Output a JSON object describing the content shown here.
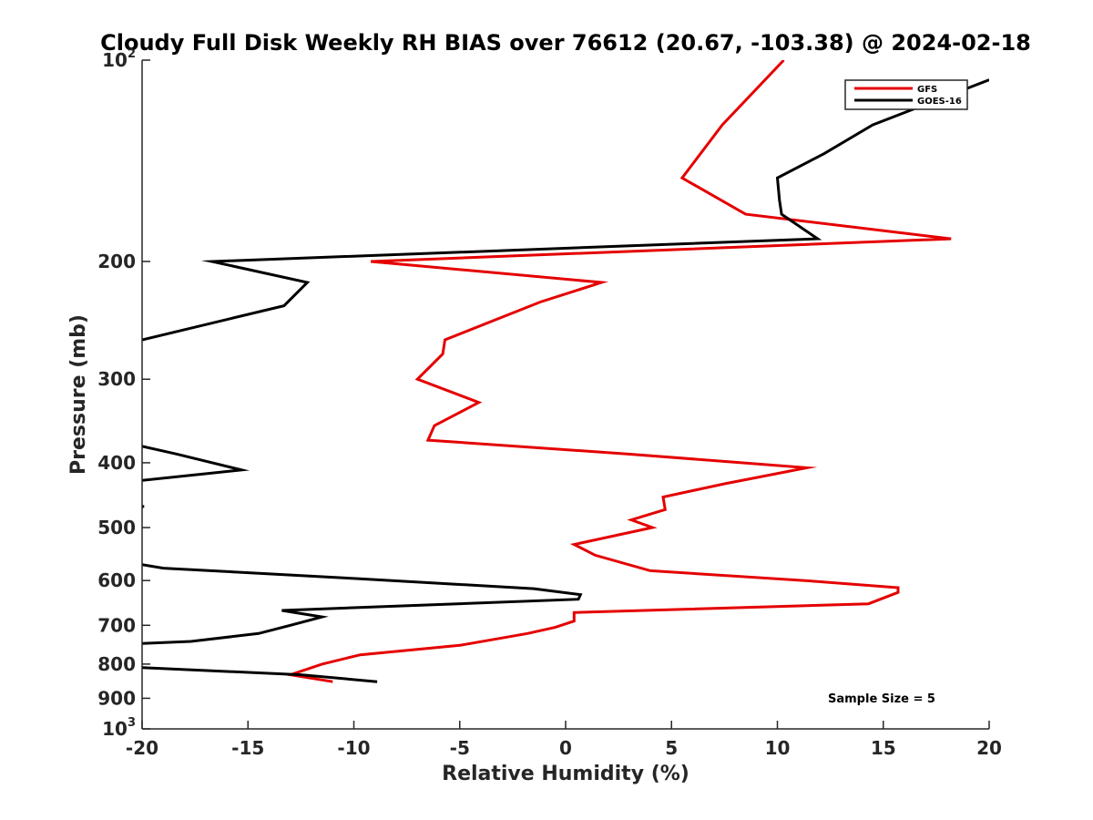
{
  "chart_data": {
    "type": "line",
    "title": "Cloudy Full Disk Weekly RH BIAS over 76612 (20.67, -103.38) @ 2024-02-18",
    "xlabel": "Relative Humidity (%)",
    "ylabel": "Pressure (mb)",
    "xlim": [
      -20,
      20
    ],
    "ylim": [
      100,
      1000
    ],
    "yscale": "log",
    "y_reversed": true,
    "x_ticks": [
      -20,
      -15,
      -10,
      -5,
      0,
      5,
      10,
      15,
      20
    ],
    "x_tick_labels": [
      "-20",
      "-15",
      "-10",
      "-5",
      "0",
      "5",
      "10",
      "15",
      "20"
    ],
    "y_ticks": [
      {
        "value": 100,
        "base": "10",
        "exp": "2"
      },
      {
        "value": 200,
        "base": "200",
        "exp": ""
      },
      {
        "value": 300,
        "base": "300",
        "exp": ""
      },
      {
        "value": 400,
        "base": "400",
        "exp": ""
      },
      {
        "value": 500,
        "base": "500",
        "exp": ""
      },
      {
        "value": 600,
        "base": "600",
        "exp": ""
      },
      {
        "value": 700,
        "base": "700",
        "exp": ""
      },
      {
        "value": 800,
        "base": "800",
        "exp": ""
      },
      {
        "value": 900,
        "base": "900",
        "exp": ""
      },
      {
        "value": 1000,
        "base": "10",
        "exp": "3"
      }
    ],
    "legend_position": "top-right",
    "annotation": "Sample Size = 5",
    "series": [
      {
        "name": "GFS",
        "color": "#e50000",
        "segments": [
          [
            [
              10.3,
              100
            ],
            [
              7.4,
              125
            ],
            [
              5.5,
              150
            ],
            [
              8.5,
              170
            ],
            [
              18.2,
              185
            ],
            [
              -9.2,
              200
            ],
            [
              1.7,
              215
            ],
            [
              -1.2,
              230
            ],
            [
              -5.7,
              262
            ],
            [
              -5.8,
              275
            ],
            [
              -7.0,
              300
            ],
            [
              -4.1,
              325
            ],
            [
              -6.2,
              352
            ],
            [
              -6.5,
              370
            ],
            [
              2.9,
              388
            ],
            [
              11.4,
              407
            ],
            [
              7.5,
              430
            ],
            [
              4.6,
              450
            ],
            [
              4.7,
              470
            ],
            [
              3.1,
              487
            ],
            [
              4.1,
              500
            ],
            [
              0.4,
              530
            ],
            [
              1.4,
              550
            ],
            [
              4.0,
              580
            ],
            [
              11.3,
              600
            ],
            [
              15.7,
              615
            ],
            [
              15.7,
              625
            ],
            [
              14.3,
              650
            ],
            [
              0.4,
              670
            ],
            [
              0.4,
              690
            ],
            [
              -0.5,
              705
            ],
            [
              -1.8,
              720
            ],
            [
              -5.0,
              750
            ],
            [
              -9.7,
              775
            ],
            [
              -11.5,
              800
            ],
            [
              -13.0,
              830
            ],
            [
              -11.0,
              850
            ]
          ]
        ]
      },
      {
        "name": "GOES-16",
        "color": "#000000",
        "segments": [
          [
            [
              20.0,
              107
            ],
            [
              14.5,
              125
            ],
            [
              12.2,
              138
            ],
            [
              10.0,
              150
            ],
            [
              10.1,
              162
            ],
            [
              10.2,
              170
            ],
            [
              11.9,
              185
            ],
            [
              -16.7,
              200
            ],
            [
              -12.2,
              215
            ],
            [
              -13.3,
              233
            ],
            [
              -20.0,
              262
            ]
          ],
          [
            [
              -20.0,
              378
            ],
            [
              -18.4,
              388
            ],
            [
              -15.3,
              410
            ],
            [
              -20.0,
              425
            ]
          ],
          [
            [
              -20.0,
              465
            ],
            [
              -19.9,
              465
            ]
          ],
          [
            [
              -20.0,
              568
            ],
            [
              -19.0,
              575
            ],
            [
              -9.9,
              596
            ],
            [
              -1.5,
              617
            ],
            [
              0.7,
              630
            ],
            [
              0.6,
              640
            ],
            [
              -13.4,
              665
            ],
            [
              -11.5,
              680
            ],
            [
              -13.0,
              700
            ],
            [
              -14.5,
              720
            ],
            [
              -17.7,
              740
            ],
            [
              -20.0,
              745
            ]
          ],
          [
            [
              -20.0,
              810
            ],
            [
              -12.5,
              830
            ],
            [
              -8.9,
              850
            ]
          ]
        ]
      }
    ]
  }
}
